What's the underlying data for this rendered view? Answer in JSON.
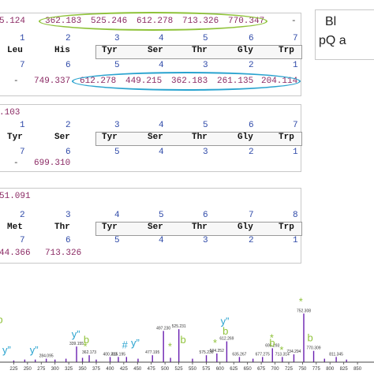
{
  "legend": {
    "line1": "Bl",
    "line2": "pQ a"
  },
  "panel1": {
    "prefix_top": "5.124",
    "top_values": [
      "362.183",
      "525.246",
      "612.278",
      "713.326",
      "770.347"
    ],
    "top_dash": "-",
    "pos_top": [
      "1",
      "2",
      "3",
      "4",
      "5",
      "6",
      "7"
    ],
    "residues": [
      "Leu",
      "His",
      "Tyr",
      "Ser",
      "Thr",
      "Gly",
      "Trp"
    ],
    "pos_bottom": [
      "7",
      "6",
      "5",
      "4",
      "3",
      "2",
      "1"
    ],
    "bottom_dash": "-",
    "bottom_values": [
      "749.337",
      "612.278",
      "449.215",
      "362.183",
      "261.135",
      "204.114"
    ]
  },
  "panel2": {
    "prefix_top": ".103",
    "pos_top": [
      "1",
      "2",
      "3",
      "4",
      "5",
      "6",
      "7"
    ],
    "residues": [
      "Tyr",
      "Ser",
      "Tyr",
      "Ser",
      "Thr",
      "Gly",
      "Trp"
    ],
    "pos_bottom": [
      "7",
      "6",
      "5",
      "4",
      "3",
      "2",
      "1"
    ],
    "bottom_dash": "-",
    "bottom_values": [
      "699.310"
    ]
  },
  "panel3": {
    "prefix_top": "51.091",
    "pos_top": [
      "2",
      "3",
      "4",
      "5",
      "6",
      "7",
      "8"
    ],
    "residues": [
      "Met",
      "Thr",
      "Tyr",
      "Ser",
      "Thr",
      "Gly",
      "Trp"
    ],
    "pos_bottom": [
      "7",
      "6",
      "5",
      "4",
      "3",
      "2",
      "1"
    ],
    "bottom_values": [
      "44.366",
      "713.326"
    ]
  },
  "chart_data": {
    "type": "bar",
    "title": "",
    "xlabel": "",
    "ylabel": "",
    "xlim": [
      200,
      880
    ],
    "x_ticks": [
      "225",
      "250",
      "275",
      "300",
      "325",
      "350",
      "375",
      "400",
      "425",
      "450",
      "475",
      "500",
      "525",
      "550",
      "575",
      "600",
      "625",
      "650",
      "675",
      "700",
      "725",
      "750",
      "775",
      "800",
      "825",
      "850"
    ],
    "peaks": [
      {
        "mz": 225.0,
        "intensity": 0.02
      },
      {
        "mz": 245.0,
        "intensity": 0.03
      },
      {
        "mz": 264.1,
        "intensity": 0.03
      },
      {
        "mz": 284.1,
        "intensity": 0.04,
        "label": "284.095"
      },
      {
        "mz": 300.0,
        "intensity": 0.03
      },
      {
        "mz": 320.0,
        "intensity": 0.04
      },
      {
        "mz": 339.2,
        "intensity": 0.18,
        "label": "339.155"
      },
      {
        "mz": 350.0,
        "intensity": 0.05
      },
      {
        "mz": 362.2,
        "intensity": 0.08,
        "label": "362.173"
      },
      {
        "mz": 375.0,
        "intensity": 0.03
      },
      {
        "mz": 400.2,
        "intensity": 0.06,
        "label": "400.213"
      },
      {
        "mz": 415.2,
        "intensity": 0.06,
        "label": "415.195"
      },
      {
        "mz": 430.0,
        "intensity": 0.06
      },
      {
        "mz": 451.0,
        "intensity": 0.04
      },
      {
        "mz": 477.2,
        "intensity": 0.08,
        "label": "477.195"
      },
      {
        "mz": 497.2,
        "intensity": 0.36,
        "label": "497.230"
      },
      {
        "mz": 510.0,
        "intensity": 0.05
      },
      {
        "mz": 525.2,
        "intensity": 0.38,
        "label": "525.231"
      },
      {
        "mz": 550.0,
        "intensity": 0.04
      },
      {
        "mz": 575.2,
        "intensity": 0.08,
        "label": "575.236"
      },
      {
        "mz": 594.3,
        "intensity": 0.1,
        "label": "594.252"
      },
      {
        "mz": 612.3,
        "intensity": 0.24,
        "label": "612.269"
      },
      {
        "mz": 635.3,
        "intensity": 0.06,
        "label": "635.267"
      },
      {
        "mz": 660.0,
        "intensity": 0.04
      },
      {
        "mz": 677.3,
        "intensity": 0.06,
        "label": "677.275"
      },
      {
        "mz": 695.3,
        "intensity": 0.16,
        "label": "695.293"
      },
      {
        "mz": 713.3,
        "intensity": 0.06,
        "label": "713.314"
      },
      {
        "mz": 734.3,
        "intensity": 0.09,
        "label": "734.294"
      },
      {
        "mz": 752.3,
        "intensity": 0.56,
        "label": "752.308"
      },
      {
        "mz": 770.3,
        "intensity": 0.13,
        "label": "770.309"
      },
      {
        "mz": 790.0,
        "intensity": 0.04
      },
      {
        "mz": 811.3,
        "intensity": 0.06,
        "label": "811.345"
      },
      {
        "mz": 830.0,
        "intensity": 0.03
      }
    ],
    "annotations": [
      {
        "text": "y”",
        "mz": 212,
        "level": 0.1,
        "color": "#2aa3cf"
      },
      {
        "text": "y”",
        "mz": 262,
        "level": 0.1,
        "color": "#2aa3cf"
      },
      {
        "text": "y”",
        "mz": 338,
        "level": 0.28,
        "color": "#2aa3cf"
      },
      {
        "text": "b",
        "mz": 357,
        "level": 0.22,
        "color": "#8fc23a"
      },
      {
        "text": "*",
        "mz": 355,
        "level": 0.14,
        "color": "#8fc23a"
      },
      {
        "text": "#",
        "mz": 427,
        "level": 0.16,
        "color": "#2aa3cf"
      },
      {
        "text": "y”",
        "mz": 446,
        "level": 0.18,
        "color": "#2aa3cf"
      },
      {
        "text": "*",
        "mz": 509,
        "level": 0.14,
        "color": "#8fc23a"
      },
      {
        "text": "b",
        "mz": 533,
        "level": 0.22,
        "color": "#8fc23a"
      },
      {
        "text": "*",
        "mz": 591,
        "level": 0.18,
        "color": "#8fc23a"
      },
      {
        "text": "y”",
        "mz": 609,
        "level": 0.43,
        "color": "#2aa3cf"
      },
      {
        "text": "b",
        "mz": 610,
        "level": 0.32,
        "color": "#8fc23a"
      },
      {
        "text": "*",
        "mz": 694,
        "level": 0.24,
        "color": "#8fc23a"
      },
      {
        "text": "b",
        "mz": 695,
        "level": 0.18,
        "color": "#8fc23a"
      },
      {
        "text": "b",
        "mz": 764,
        "level": 0.24,
        "color": "#8fc23a"
      },
      {
        "text": "*",
        "mz": 747,
        "level": 0.66,
        "color": "#8fc23a"
      },
      {
        "text": "*",
        "mz": 712,
        "level": 0.1,
        "color": "#8fc23a"
      },
      {
        "text": "b",
        "mz": 200,
        "level": 0.45,
        "color": "#8fc23a"
      }
    ]
  },
  "colors": {
    "b_ion": "#8fc23a",
    "y_ion": "#2aa3cf",
    "b_values": "#8b2a64",
    "pos_numbers": "#2e49a8",
    "peaks": "#6a1fb0"
  }
}
